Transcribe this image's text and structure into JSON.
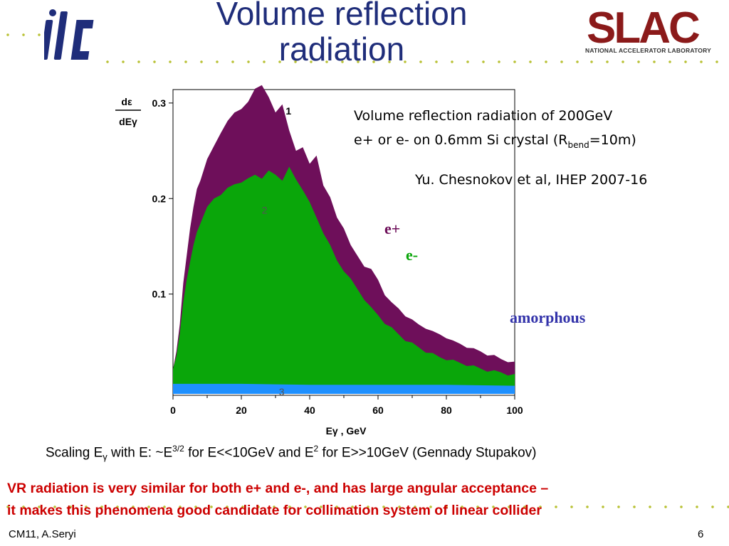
{
  "slide": {
    "title_line1": "Volume reflection",
    "title_line2": "radiation",
    "slac_text": "SLAC",
    "slac_subtitle": "NATIONAL ACCELERATOR LABORATORY",
    "description_line1": "Volume reflection radiation of 200GeV",
    "description_line2_pre": "e+ or e- on 0.6mm Si crystal (R",
    "description_line2_sub": "bend",
    "description_line2_post": "=10m)",
    "reference": "Yu. Chesnokov et al, IHEP 2007-16",
    "scaling_pre": "Scaling E",
    "scaling_sub": "γ",
    "scaling_mid1": " with E: ~E",
    "scaling_sup1": "3/2",
    "scaling_mid2": " for E<<10GeV and E",
    "scaling_sup2": "2",
    "scaling_post": " for E>>10GeV  (Gennady Stupakov)",
    "conclusion_line1": "VR radiation is very similar for both e+ and e-, and has large angular acceptance –",
    "conclusion_line2": "it makes this phenomena good candidate for collimation system of linear collider",
    "footer_left": "CM11, A.Seryi",
    "footer_right": "6"
  },
  "colors": {
    "title": "#1f2d7a",
    "accent_dots": "#b9c236",
    "e_plus": "#6e0f5a",
    "e_minus": "#0aa60a",
    "amorphous": "#1e90ff",
    "conclusion": "#cc0000",
    "slac": "#8b1a1a"
  },
  "chart_data": {
    "type": "area",
    "ylabel_num": "dε",
    "ylabel_den": "dEγ",
    "xlabel": "Eγ , GeV",
    "xlim": [
      0,
      100
    ],
    "ylim": [
      0,
      0.32
    ],
    "x_ticks": [
      "0",
      "20",
      "40",
      "60",
      "80",
      "100"
    ],
    "y_ticks": [
      "0.1",
      "0.2",
      "0.3"
    ],
    "grid": false,
    "legend": [
      "e+",
      "e-",
      "amorphous"
    ],
    "curve_labels": [
      "1",
      "2",
      "3"
    ],
    "series": [
      {
        "name": "e+",
        "x": [
          0,
          1,
          2,
          3,
          4,
          5,
          6,
          7,
          8,
          10,
          12,
          14,
          16,
          18,
          20,
          22,
          24,
          26,
          28,
          30,
          32,
          34,
          36,
          38,
          40,
          42,
          44,
          46,
          48,
          50,
          52,
          54,
          56,
          58,
          60,
          62,
          64,
          66,
          68,
          70,
          72,
          74,
          76,
          78,
          80,
          82,
          84,
          86,
          88,
          90,
          92,
          94,
          96,
          98,
          100
        ],
        "values": [
          0.02,
          0.04,
          0.07,
          0.11,
          0.14,
          0.17,
          0.19,
          0.21,
          0.22,
          0.24,
          0.255,
          0.27,
          0.28,
          0.29,
          0.295,
          0.3,
          0.315,
          0.32,
          0.305,
          0.29,
          0.3,
          0.27,
          0.25,
          0.255,
          0.235,
          0.245,
          0.215,
          0.2,
          0.18,
          0.17,
          0.15,
          0.14,
          0.13,
          0.125,
          0.115,
          0.1,
          0.09,
          0.085,
          0.078,
          0.072,
          0.068,
          0.065,
          0.06,
          0.058,
          0.055,
          0.05,
          0.048,
          0.045,
          0.042,
          0.04,
          0.037,
          0.035,
          0.032,
          0.03,
          0.028
        ]
      },
      {
        "name": "e-",
        "x": [
          0,
          1,
          2,
          3,
          4,
          5,
          6,
          7,
          8,
          10,
          12,
          14,
          16,
          18,
          20,
          22,
          24,
          26,
          28,
          30,
          32,
          34,
          36,
          38,
          40,
          42,
          44,
          46,
          48,
          50,
          52,
          54,
          56,
          58,
          60,
          62,
          64,
          66,
          68,
          70,
          72,
          74,
          76,
          78,
          80,
          82,
          84,
          86,
          88,
          90,
          92,
          94,
          96,
          98,
          100
        ],
        "values": [
          0.02,
          0.035,
          0.06,
          0.09,
          0.115,
          0.135,
          0.15,
          0.165,
          0.175,
          0.19,
          0.2,
          0.205,
          0.21,
          0.215,
          0.218,
          0.22,
          0.225,
          0.222,
          0.228,
          0.225,
          0.22,
          0.232,
          0.22,
          0.21,
          0.195,
          0.18,
          0.165,
          0.15,
          0.135,
          0.125,
          0.115,
          0.105,
          0.095,
          0.085,
          0.078,
          0.07,
          0.064,
          0.058,
          0.052,
          0.048,
          0.044,
          0.04,
          0.037,
          0.034,
          0.032,
          0.03,
          0.028,
          0.026,
          0.024,
          0.022,
          0.02,
          0.019,
          0.018,
          0.016,
          0.015
        ]
      },
      {
        "name": "amorphous",
        "x": [
          0,
          20,
          40,
          60,
          80,
          100
        ],
        "values": [
          0.006,
          0.006,
          0.005,
          0.005,
          0.005,
          0.004
        ]
      }
    ]
  }
}
